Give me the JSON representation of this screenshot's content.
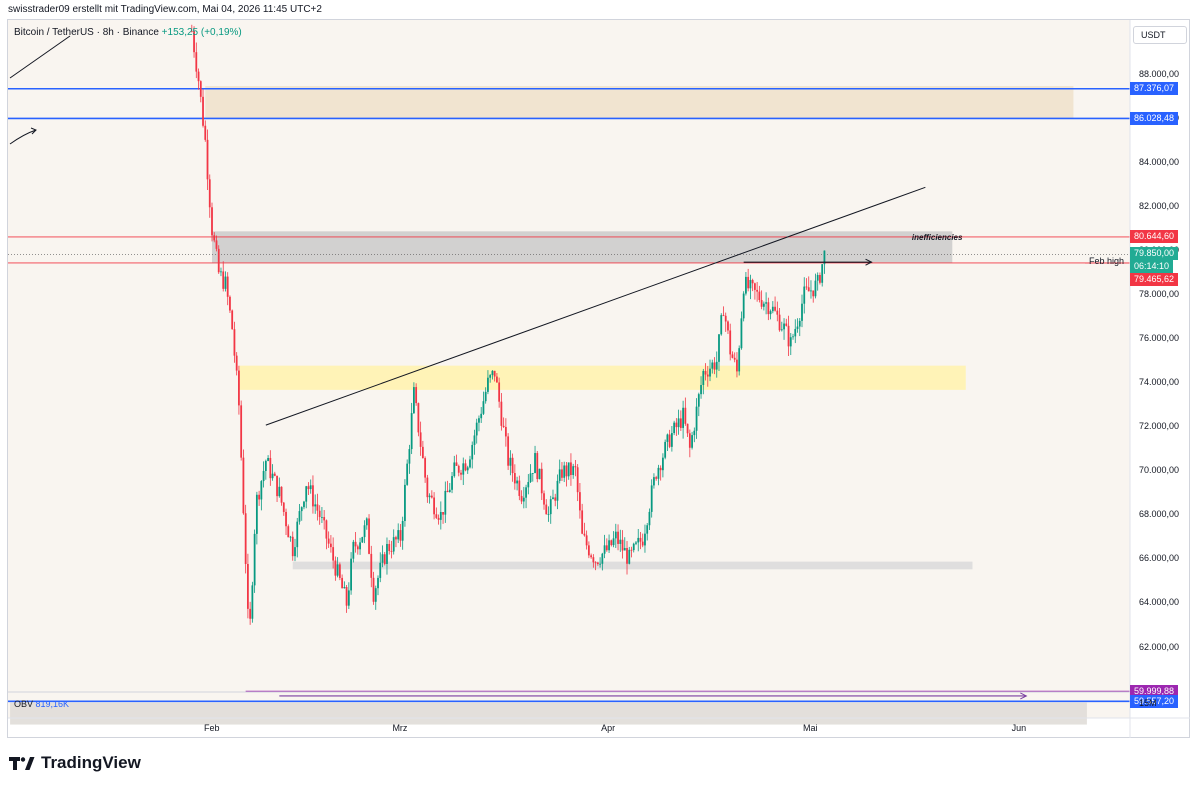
{
  "header": {
    "text": "swisstrader09 erstellt mit TradingView.com, Mai 04, 2026 11:45 UTC+2"
  },
  "symbol": {
    "name": "Bitcoin / TetherUS · 8h · Binance",
    "change": "+153,25 (+0,19%)"
  },
  "currency_button": "USDT",
  "indicator": {
    "name": "OBV",
    "value": "819,16K"
  },
  "volume_scale_label": "15M",
  "footer": {
    "logo_text": "TradingView"
  },
  "annotations": {
    "inefficiencies": "inefficiencies",
    "feb_high": "Feb high"
  },
  "colors": {
    "background": "#f9f5f0",
    "up": "#089981",
    "down": "#f23645",
    "blue_line": "#2962ff",
    "red_line": "#f23645",
    "purple_line": "#9c27b0",
    "supply_zone": "#efe2cc",
    "grey_zone": "#c8c8c8",
    "yellow_zone": "#fff3b0"
  },
  "price_labels": [
    {
      "value": "87.376,07",
      "price": 87376.07,
      "color": "#2962ff"
    },
    {
      "value": "86.028,48",
      "price": 86028.48,
      "color": "#2962ff"
    },
    {
      "value": "80.644,60",
      "price": 80644.6,
      "color": "#f23645"
    },
    {
      "value": "79.850,00",
      "price": 79850.0,
      "color": "#22ab94"
    },
    {
      "value": "06:14:10",
      "price": 79600.0,
      "color": "#22ab94"
    },
    {
      "value": "79.465,62",
      "price": 79465.62,
      "color": "#f23645"
    },
    {
      "value": "59.999,88",
      "price": 59999.88,
      "color": "#9c27b0"
    },
    {
      "value": "59.557,20",
      "price": 59557.2,
      "color": "#2962ff"
    }
  ],
  "chart_data": {
    "type": "candlestick",
    "title": "Bitcoin / TetherUS · 8h · Binance",
    "y_ticks": [
      "88.000,00",
      "86.000,00",
      "84.000,00",
      "82.000,00",
      "80.000,00",
      "78.000,00",
      "76.000,00",
      "74.000,00",
      "72.000,00",
      "70.000,00",
      "68.000,00",
      "66.000,00",
      "64.000,00",
      "62.000,00"
    ],
    "y_tick_values": [
      88000,
      86000,
      84000,
      82000,
      80000,
      78000,
      76000,
      74000,
      72000,
      70000,
      68000,
      66000,
      64000,
      62000
    ],
    "x_ticks": [
      "Feb",
      "Mrz",
      "Apr",
      "Mai",
      "Jun"
    ],
    "x_tick_days": [
      0,
      28,
      59,
      89,
      120
    ],
    "ylim": [
      58500,
      91000
    ],
    "grid": false,
    "zones": [
      {
        "kind": "supply",
        "day_start": -1,
        "day_end": 128,
        "price_top": 87500,
        "price_bottom": 86000
      },
      {
        "kind": "inefficiencies",
        "day_start": 0,
        "day_end": 110,
        "price_top": 80900,
        "price_bottom": 79470
      },
      {
        "kind": "yellow",
        "day_start": 4,
        "day_end": 112,
        "price_top": 74800,
        "price_bottom": 73700
      },
      {
        "kind": "range-low",
        "day_start": 12,
        "day_end": 113,
        "price_top": 65900,
        "price_bottom": 65550
      },
      {
        "kind": "bottom",
        "day_start": -30,
        "day_end": 130,
        "price_top": 59500,
        "price_bottom": 58500
      }
    ],
    "lines": [
      {
        "kind": "trendline",
        "from": [
          8,
          72100
        ],
        "to": [
          106,
          82900
        ]
      },
      {
        "kind": "feb-high-arrow",
        "from": [
          79,
          79500
        ],
        "to": [
          98,
          79500
        ]
      },
      {
        "kind": "low-arrow",
        "from": [
          10,
          59800
        ],
        "to": [
          121,
          59800
        ]
      }
    ],
    "key_points": [
      {
        "day": -3,
        "price": 90000
      },
      {
        "day": -2,
        "price": 87800
      },
      {
        "day": -1,
        "price": 85000
      },
      {
        "day": 0,
        "price": 81000
      },
      {
        "day": 1,
        "price": 79000
      },
      {
        "day": 2,
        "price": 78500
      },
      {
        "day": 3,
        "price": 76500
      },
      {
        "day": 4,
        "price": 73000
      },
      {
        "day": 5,
        "price": 66000
      },
      {
        "day": 5.5,
        "price": 62000
      },
      {
        "day": 6.5,
        "price": 68500
      },
      {
        "day": 8,
        "price": 70500
      },
      {
        "day": 10,
        "price": 69000
      },
      {
        "day": 12,
        "price": 66500
      },
      {
        "day": 14,
        "price": 69500
      },
      {
        "day": 16,
        "price": 68000
      },
      {
        "day": 18,
        "price": 66000
      },
      {
        "day": 20,
        "price": 64000
      },
      {
        "day": 21,
        "price": 66500
      },
      {
        "day": 23,
        "price": 67500
      },
      {
        "day": 24,
        "price": 64500
      },
      {
        "day": 26,
        "price": 66500
      },
      {
        "day": 28,
        "price": 67000
      },
      {
        "day": 30,
        "price": 73500
      },
      {
        "day": 32,
        "price": 69000
      },
      {
        "day": 34,
        "price": 68000
      },
      {
        "day": 36,
        "price": 70000
      },
      {
        "day": 38,
        "price": 70500
      },
      {
        "day": 41,
        "price": 74000
      },
      {
        "day": 42,
        "price": 74500
      },
      {
        "day": 43,
        "price": 72500
      },
      {
        "day": 44,
        "price": 70500
      },
      {
        "day": 46,
        "price": 69000
      },
      {
        "day": 48,
        "price": 70500
      },
      {
        "day": 50,
        "price": 68000
      },
      {
        "day": 52,
        "price": 70000
      },
      {
        "day": 54,
        "price": 70000
      },
      {
        "day": 55,
        "price": 67000
      },
      {
        "day": 57,
        "price": 66000
      },
      {
        "day": 59,
        "price": 66500
      },
      {
        "day": 60,
        "price": 67000
      },
      {
        "day": 62,
        "price": 66000
      },
      {
        "day": 64,
        "price": 67000
      },
      {
        "day": 66,
        "price": 70000
      },
      {
        "day": 68,
        "price": 71500
      },
      {
        "day": 70,
        "price": 72500
      },
      {
        "day": 71,
        "price": 71000
      },
      {
        "day": 73,
        "price": 74500
      },
      {
        "day": 75,
        "price": 75000
      },
      {
        "day": 76,
        "price": 77500
      },
      {
        "day": 77,
        "price": 75500
      },
      {
        "day": 78,
        "price": 74500
      },
      {
        "day": 79,
        "price": 78500
      },
      {
        "day": 81,
        "price": 78000
      },
      {
        "day": 83,
        "price": 77500
      },
      {
        "day": 85,
        "price": 76500
      },
      {
        "day": 86,
        "price": 75800
      },
      {
        "day": 88,
        "price": 78000
      },
      {
        "day": 90,
        "price": 78500
      },
      {
        "day": 91,
        "price": 79850
      }
    ]
  }
}
